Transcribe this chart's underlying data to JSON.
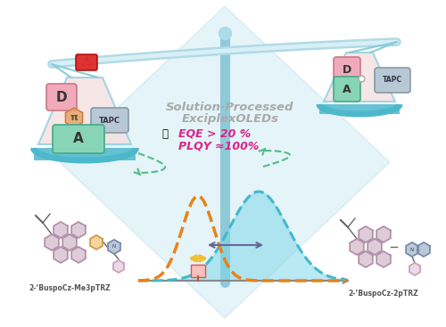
{
  "bg_color": "#ffffff",
  "diamond_color": "#c5e8f0",
  "pole_color": "#8ecad8",
  "beam_color": "#9dd4e0",
  "bowl_color": "#4db8cc",
  "title_line1": "Solution-Processed",
  "title_line2": "ExciplexOLEDs",
  "stat1": "EQE > 20 %",
  "stat2": "PLQY ≈100%",
  "title_color": "#aaaaaa",
  "stat_color": "#dd2288",
  "left_label": "2-’BuspoCz-Me3pTRZ",
  "right_label": "2-’BuspoCz-2pTRZ",
  "label_color": "#555555",
  "orange_color": "#e8821a",
  "cyan_color": "#44b8cc",
  "dashed_arrow_color": "#55bb88",
  "arrow_color": "#999999",
  "yellow_color": "#f0c030"
}
